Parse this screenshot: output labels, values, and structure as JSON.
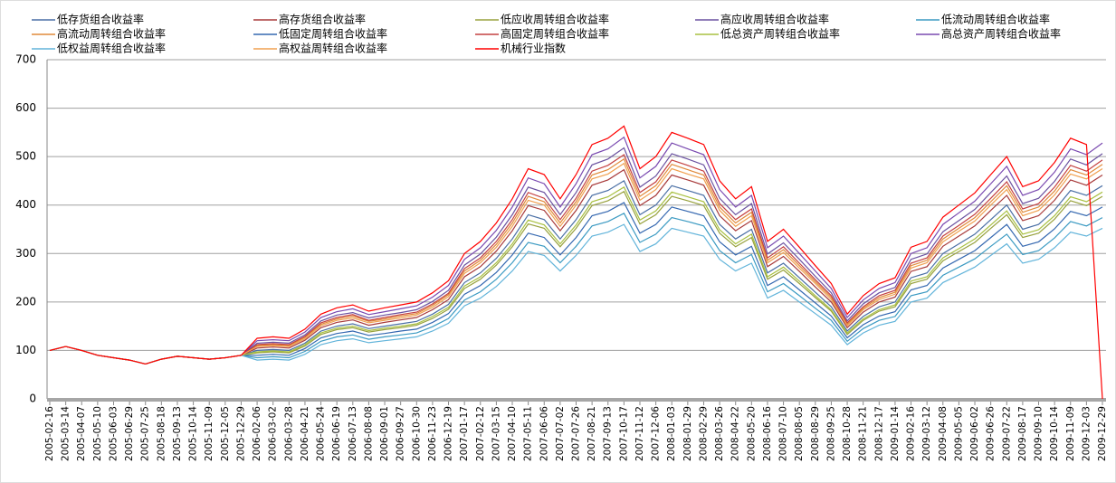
{
  "chart_data": {
    "type": "line",
    "categories": [
      "2005-02-16",
      "2005-03-14",
      "2005-04-07",
      "2005-05-10",
      "2005-06-03",
      "2005-06-29",
      "2005-07-25",
      "2005-08-18",
      "2005-09-13",
      "2005-10-14",
      "2005-11-09",
      "2005-12-05",
      "2005-12-29",
      "2006-02-06",
      "2006-03-02",
      "2006-03-28",
      "2006-04-21",
      "2006-05-24",
      "2006-06-19",
      "2006-07-13",
      "2006-08-08",
      "2006-09-01",
      "2006-09-27",
      "2006-10-30",
      "2006-11-23",
      "2006-12-19",
      "2007-01-17",
      "2007-02-12",
      "2007-03-15",
      "2007-04-10",
      "2007-05-11",
      "2007-06-06",
      "2007-07-02",
      "2007-07-26",
      "2007-08-21",
      "2007-09-13",
      "2007-10-17",
      "2007-11-12",
      "2007-12-06",
      "2008-01-03",
      "2008-01-29",
      "2008-02-29",
      "2008-03-26",
      "2008-04-22",
      "2008-05-20",
      "2008-06-16",
      "2008-07-10",
      "2008-08-05",
      "2008-08-29",
      "2008-09-25",
      "2008-10-28",
      "2008-11-21",
      "2008-12-17",
      "2009-01-14",
      "2009-02-16",
      "2009-03-12",
      "2009-04-08",
      "2009-05-05",
      "2009-06-02",
      "2009-06-26",
      "2009-07-22",
      "2009-08-17",
      "2009-09-10",
      "2009-10-14",
      "2009-11-09",
      "2009-12-03",
      "2009-12-29"
    ],
    "ylim": [
      0,
      700
    ],
    "yticks": [
      0,
      100,
      200,
      300,
      400,
      500,
      600,
      700
    ],
    "grid": true,
    "series": [
      {
        "name": "低存货组合收益率",
        "color": "#4a6fa5",
        "values": [
          100,
          108,
          100,
          90,
          85,
          80,
          72,
          82,
          88,
          85,
          82,
          85,
          90,
          100,
          102,
          100,
          115,
          140,
          150,
          155,
          145,
          150,
          155,
          160,
          175,
          195,
          240,
          260,
          290,
          330,
          380,
          370,
          330,
          370,
          420,
          430,
          450,
          380,
          400,
          440,
          430,
          420,
          360,
          330,
          350,
          260,
          280,
          250,
          220,
          190,
          140,
          170,
          190,
          200,
          250,
          260,
          300,
          320,
          340,
          370,
          400,
          350,
          360,
          390,
          430,
          420,
          440
        ]
      },
      {
        "name": "高存货组合收益率",
        "color": "#a83a3a",
        "values": [
          100,
          108,
          100,
          90,
          85,
          80,
          72,
          82,
          88,
          85,
          82,
          85,
          90,
          105,
          107,
          105,
          121,
          147,
          158,
          163,
          152,
          158,
          163,
          168,
          184,
          205,
          252,
          273,
          305,
          347,
          399,
          389,
          347,
          389,
          441,
          452,
          473,
          399,
          420,
          462,
          452,
          441,
          378,
          347,
          368,
          273,
          294,
          263,
          231,
          200,
          147,
          179,
          200,
          210,
          263,
          273,
          315,
          336,
          357,
          389,
          420,
          368,
          378,
          410,
          452,
          441,
          462
        ]
      },
      {
        "name": "低应收周转组合收益率",
        "color": "#98a23e",
        "values": [
          100,
          108,
          100,
          90,
          85,
          80,
          72,
          82,
          88,
          85,
          82,
          85,
          90,
          95,
          97,
          95,
          109,
          133,
          143,
          147,
          138,
          143,
          147,
          152,
          166,
          185,
          228,
          247,
          276,
          314,
          361,
          352,
          314,
          352,
          399,
          409,
          428,
          361,
          380,
          418,
          409,
          399,
          342,
          314,
          333,
          247,
          266,
          238,
          209,
          181,
          133,
          162,
          181,
          190,
          238,
          247,
          285,
          304,
          323,
          352,
          380,
          333,
          342,
          371,
          409,
          399,
          418
        ]
      },
      {
        "name": "高应收周转组合收益率",
        "color": "#6b52a0",
        "values": [
          100,
          108,
          100,
          90,
          85,
          80,
          72,
          82,
          88,
          85,
          82,
          85,
          90,
          115,
          117,
          115,
          132,
          161,
          173,
          178,
          167,
          173,
          178,
          184,
          201,
          224,
          276,
          299,
          334,
          380,
          437,
          426,
          380,
          426,
          483,
          495,
          518,
          437,
          460,
          506,
          495,
          483,
          414,
          380,
          403,
          299,
          322,
          288,
          253,
          219,
          161,
          196,
          219,
          230,
          288,
          299,
          345,
          368,
          391,
          426,
          460,
          403,
          414,
          449,
          495,
          483,
          506
        ]
      },
      {
        "name": "低流动周转组合收益率",
        "color": "#3b9ac2",
        "values": [
          100,
          108,
          100,
          90,
          85,
          80,
          72,
          82,
          88,
          85,
          82,
          85,
          90,
          85,
          87,
          85,
          98,
          119,
          128,
          132,
          123,
          128,
          132,
          136,
          149,
          166,
          204,
          221,
          247,
          281,
          323,
          315,
          281,
          315,
          357,
          366,
          383,
          323,
          340,
          374,
          366,
          357,
          306,
          281,
          298,
          221,
          238,
          213,
          187,
          162,
          119,
          145,
          162,
          170,
          213,
          221,
          255,
          272,
          289,
          315,
          340,
          298,
          306,
          332,
          366,
          357,
          374
        ]
      },
      {
        "name": "高流动周转组合收益率",
        "color": "#e08a3a",
        "values": [
          100,
          108,
          100,
          90,
          85,
          80,
          72,
          82,
          88,
          85,
          82,
          85,
          90,
          110,
          112,
          110,
          127,
          154,
          165,
          171,
          160,
          165,
          171,
          176,
          193,
          215,
          264,
          286,
          319,
          363,
          418,
          407,
          363,
          407,
          462,
          473,
          495,
          418,
          440,
          484,
          473,
          462,
          396,
          363,
          385,
          286,
          308,
          275,
          242,
          209,
          154,
          187,
          209,
          220,
          275,
          286,
          330,
          352,
          374,
          407,
          440,
          385,
          396,
          429,
          473,
          462,
          484
        ]
      },
      {
        "name": "低固定周转组合收益率",
        "color": "#3568b0",
        "values": [
          100,
          108,
          100,
          90,
          85,
          80,
          72,
          82,
          88,
          85,
          82,
          85,
          90,
          90,
          92,
          90,
          104,
          126,
          135,
          140,
          131,
          135,
          140,
          144,
          158,
          176,
          216,
          234,
          261,
          297,
          342,
          333,
          297,
          333,
          378,
          387,
          405,
          342,
          360,
          396,
          387,
          378,
          324,
          297,
          315,
          234,
          252,
          225,
          198,
          171,
          126,
          153,
          171,
          180,
          225,
          234,
          270,
          288,
          306,
          333,
          360,
          315,
          324,
          351,
          387,
          378,
          396
        ]
      },
      {
        "name": "高固定周转组合收益率",
        "color": "#c44040",
        "values": [
          100,
          108,
          100,
          90,
          85,
          80,
          72,
          82,
          88,
          85,
          82,
          85,
          90,
          112,
          114,
          112,
          129,
          157,
          168,
          174,
          162,
          168,
          174,
          179,
          196,
          218,
          269,
          291,
          325,
          370,
          426,
          414,
          370,
          414,
          470,
          482,
          504,
          426,
          448,
          493,
          482,
          470,
          403,
          370,
          392,
          291,
          314,
          280,
          246,
          213,
          157,
          190,
          213,
          224,
          280,
          291,
          336,
          358,
          381,
          414,
          448,
          392,
          403,
          437,
          482,
          470,
          493
        ]
      },
      {
        "name": "低总资产周转组合收益率",
        "color": "#a8c040",
        "values": [
          100,
          108,
          100,
          90,
          85,
          80,
          72,
          82,
          88,
          85,
          82,
          85,
          90,
          97,
          99,
          97,
          112,
          136,
          146,
          150,
          141,
          146,
          150,
          155,
          170,
          189,
          233,
          252,
          281,
          320,
          369,
          359,
          320,
          359,
          407,
          417,
          437,
          369,
          388,
          427,
          417,
          407,
          349,
          320,
          340,
          252,
          272,
          243,
          213,
          184,
          136,
          165,
          184,
          194,
          243,
          252,
          291,
          310,
          330,
          359,
          388,
          340,
          349,
          378,
          417,
          407,
          427
        ]
      },
      {
        "name": "高总资产周转组合收益率",
        "color": "#7a4ab0",
        "values": [
          100,
          108,
          100,
          90,
          85,
          80,
          72,
          82,
          88,
          85,
          82,
          85,
          90,
          120,
          122,
          120,
          138,
          168,
          180,
          186,
          174,
          180,
          186,
          192,
          210,
          234,
          288,
          312,
          348,
          396,
          456,
          444,
          396,
          444,
          504,
          516,
          540,
          456,
          480,
          528,
          516,
          504,
          432,
          396,
          420,
          312,
          336,
          300,
          264,
          228,
          168,
          204,
          228,
          240,
          300,
          312,
          360,
          384,
          408,
          444,
          480,
          420,
          432,
          468,
          516,
          504,
          528
        ]
      },
      {
        "name": "低权益周转组合收益率",
        "color": "#62b4da",
        "values": [
          100,
          108,
          100,
          90,
          85,
          80,
          72,
          82,
          88,
          85,
          82,
          85,
          90,
          80,
          82,
          80,
          92,
          112,
          120,
          124,
          116,
          120,
          124,
          128,
          140,
          156,
          192,
          208,
          232,
          264,
          304,
          296,
          264,
          296,
          336,
          344,
          360,
          304,
          320,
          352,
          344,
          336,
          288,
          264,
          280,
          208,
          224,
          200,
          176,
          152,
          112,
          136,
          152,
          160,
          200,
          208,
          240,
          256,
          272,
          296,
          320,
          280,
          288,
          312,
          344,
          336,
          352
        ]
      },
      {
        "name": "高权益周转组合收益率",
        "color": "#f0a050",
        "values": [
          100,
          108,
          100,
          90,
          85,
          80,
          72,
          82,
          88,
          85,
          82,
          85,
          90,
          108,
          110,
          108,
          124,
          151,
          162,
          167,
          157,
          162,
          167,
          173,
          189,
          211,
          259,
          281,
          313,
          356,
          410,
          400,
          356,
          400,
          454,
          464,
          486,
          410,
          432,
          475,
          464,
          454,
          389,
          356,
          378,
          281,
          302,
          270,
          238,
          205,
          151,
          184,
          205,
          216,
          270,
          281,
          324,
          346,
          367,
          400,
          432,
          378,
          389,
          421,
          464,
          454,
          475
        ]
      },
      {
        "name": "机械行业指数",
        "color": "#ff0000",
        "values": [
          100,
          108,
          100,
          90,
          85,
          80,
          72,
          82,
          88,
          85,
          82,
          85,
          90,
          125,
          128,
          125,
          144,
          175,
          188,
          194,
          181,
          188,
          194,
          200,
          219,
          244,
          300,
          325,
          363,
          413,
          475,
          463,
          413,
          463,
          525,
          538,
          563,
          475,
          500,
          550,
          538,
          525,
          450,
          413,
          438,
          325,
          350,
          313,
          275,
          238,
          175,
          213,
          238,
          250,
          313,
          325,
          375,
          400,
          425,
          463,
          500,
          438,
          450,
          488,
          538,
          525,
          0
        ]
      }
    ]
  }
}
